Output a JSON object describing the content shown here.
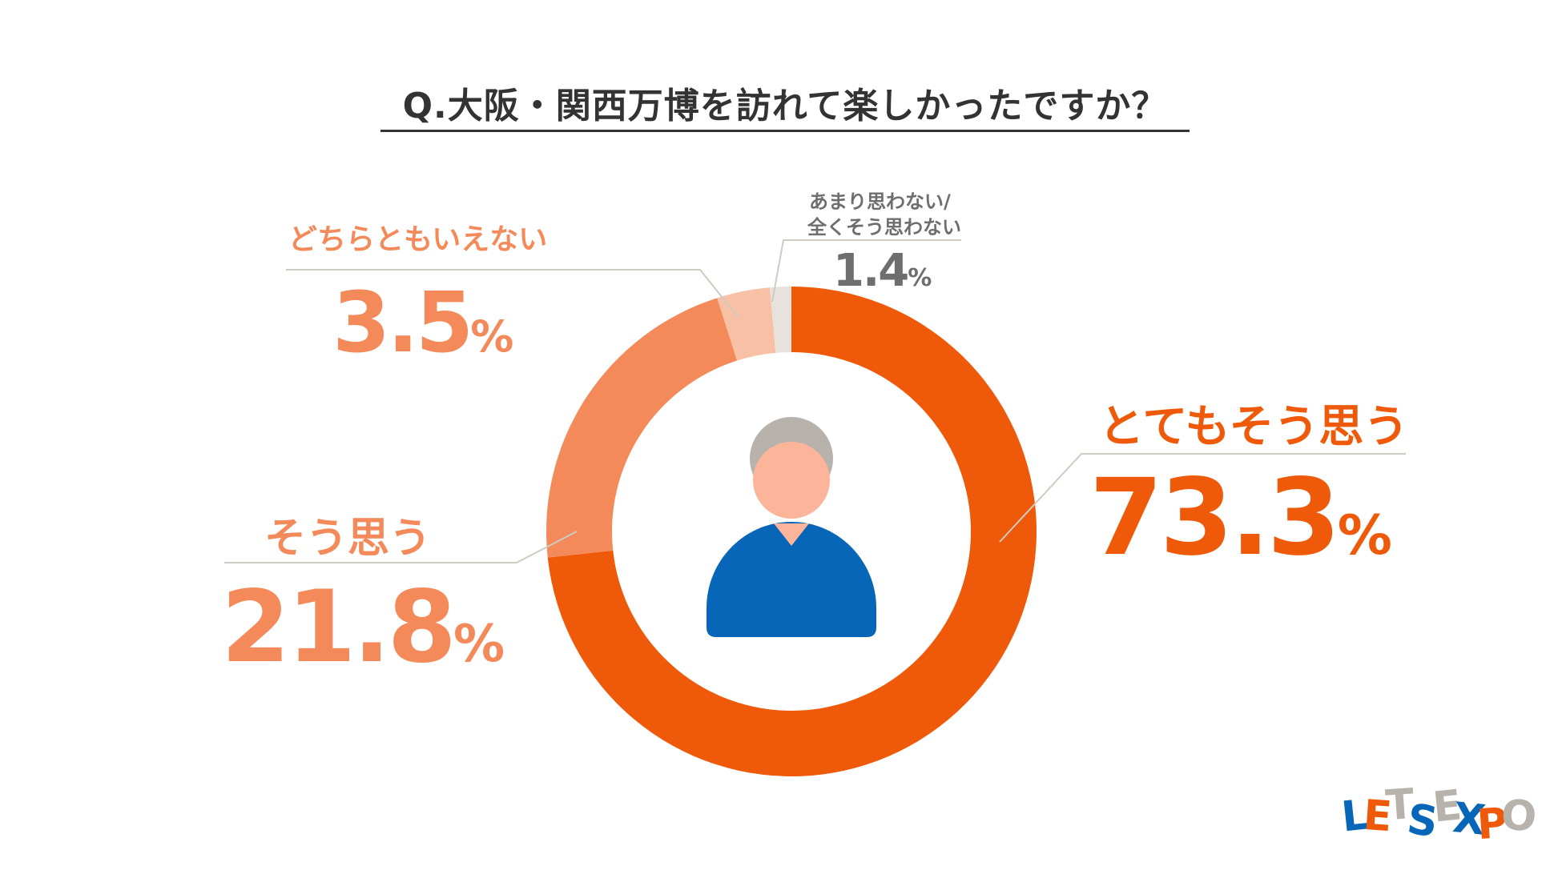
{
  "title": "Q.大阪・関西万博を訪れて楽しかったですか？",
  "colors": {
    "very_agree": "#ef5a0a",
    "agree": "#f4895a",
    "neutral": "#f8c1a6",
    "disagree": "#e8e2dc",
    "label_gray": "#6e6e6e",
    "leader": "#cfcac2",
    "figure_hair": "#b7b2ab",
    "figure_face": "#fcb59a",
    "figure_body": "#0866b8"
  },
  "chart_data": {
    "type": "pie",
    "variant": "donut",
    "title": "Q.大阪・関西万博を訪れて楽しかったですか？",
    "categories": [
      "とてもそう思う",
      "そう思う",
      "どちらともいえない",
      "あまり思わない/全くそう思わない"
    ],
    "values": [
      73.3,
      21.8,
      3.5,
      1.4
    ],
    "unit": "%",
    "legend": "none",
    "slices": [
      {
        "label": "とてもそう思う",
        "value_text": "73.3",
        "unit": "%",
        "color": "#ef5a0a"
      },
      {
        "label": "そう思う",
        "value_text": "21.8",
        "unit": "%",
        "color": "#f4895a"
      },
      {
        "label": "どちらともいえない",
        "value_text": "3.5",
        "unit": "%",
        "color": "#f8c1a6"
      },
      {
        "label_lines": [
          "あまり思わない/",
          "全くそう思わない"
        ],
        "value_text": "1.4",
        "unit": "%",
        "color": "#e8e2dc"
      }
    ]
  },
  "center_icon": "person-icon",
  "logo": {
    "text": "LETSEXPO",
    "letters": [
      "L",
      "E",
      "T",
      "S",
      "E",
      "X",
      "P",
      "O"
    ]
  }
}
